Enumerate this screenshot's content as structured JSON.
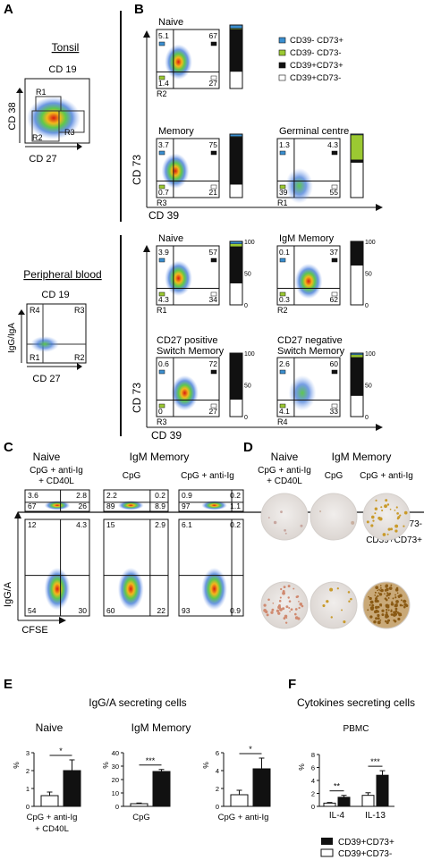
{
  "panels": {
    "A": "A",
    "B": "B",
    "C": "C",
    "D": "D",
    "E": "E",
    "F": "F"
  },
  "A": {
    "tonsil_title": "Tonsil",
    "cd19": "CD 19",
    "ylabel": "CD 38",
    "xlabel": "CD 27",
    "gates": [
      "R1",
      "R2",
      "R3"
    ],
    "pb_title": "Peripheral blood",
    "pb_cd19": "CD 19",
    "pb_ylabel": "IgG/IgA",
    "pb_xlabel": "CD 27",
    "pb_gates": [
      "R4",
      "R3",
      "R1",
      "R2"
    ]
  },
  "B": {
    "legend": [
      "CD39- CD73+",
      "CD39- CD73-",
      "CD39+CD73+",
      "CD39+CD73-"
    ],
    "ylabel": "CD 73",
    "xlabel": "CD 39",
    "top_plots": [
      {
        "title": "Naive",
        "q": [
          "5.1",
          "67",
          "1.4",
          "27"
        ],
        "region": "R2"
      },
      {
        "title": "Memory",
        "q": [
          "3.7",
          "75",
          "0.7",
          "21"
        ],
        "region": "R3"
      },
      {
        "title": "Germinal centre",
        "q": [
          "1.3",
          "4.3",
          "39",
          "55"
        ],
        "region": "R1"
      }
    ],
    "bottom_plots": [
      {
        "title": "Naive",
        "q": [
          "3.9",
          "57",
          "4.3",
          "34"
        ],
        "region": "R1"
      },
      {
        "title": "IgM Memory",
        "q": [
          "0.1",
          "37",
          "0.3",
          "62"
        ],
        "region": "R2"
      },
      {
        "title": "CD27 positive Switch Memory",
        "title_lines": [
          "CD27 positive",
          "Switch Memory"
        ],
        "q": [
          "0.6",
          "72",
          "0",
          "27"
        ],
        "region": "R3"
      },
      {
        "title": "CD27 negative Switch Memory",
        "title_lines": [
          "CD27 negative",
          "Switch Memory"
        ],
        "q": [
          "2.6",
          "60",
          "4.1",
          "33"
        ],
        "region": "R4"
      }
    ],
    "bar_ticks": [
      "100",
      "50",
      "0"
    ]
  },
  "C": {
    "col_titles": [
      "Naive",
      "IgM Memory"
    ],
    "cond_lines": [
      [
        "CpG + anti-Ig",
        "+ CD40L"
      ],
      [
        "CpG"
      ],
      [
        "CpG + anti-Ig"
      ]
    ],
    "top_row": [
      [
        "3.6",
        "2.8",
        "67",
        "26"
      ],
      [
        "2.2",
        "0.2",
        "89",
        "8.9"
      ],
      [
        "0.9",
        "0.2",
        "97",
        "1.1"
      ]
    ],
    "bottom_row": [
      [
        "12",
        "4.3",
        "54",
        "30"
      ],
      [
        "15",
        "2.9",
        "60",
        "22"
      ],
      [
        "6.1",
        "0.2",
        "93",
        "0.9"
      ]
    ],
    "ylabel": "IgG/A",
    "xlabel": "CFSE"
  },
  "D": {
    "col_titles": [
      "Naive",
      "IgM Memory"
    ],
    "cond_lines": [
      [
        "CpG + anti-Ig",
        "+ CD40L"
      ],
      [
        "CpG"
      ],
      [
        "CpG + anti-Ig"
      ]
    ],
    "row_labels": [
      "CD39+CD73-",
      "CD39+CD73+"
    ]
  },
  "E": {
    "title": "IgG/A secreting cells",
    "col_titles": [
      "Naive",
      "IgM Memory"
    ]
  },
  "F": {
    "title": "Cytokines secreting cells",
    "subtitle": "PBMC"
  },
  "legend_bottom": [
    "CD39+CD73+",
    "CD39+CD73-"
  ],
  "colors": {
    "blue": "#3b8fd0",
    "green": "#9bc932",
    "black": "#111111",
    "white": "#ffffff"
  },
  "chart_data": [
    {
      "type": "bar",
      "panel": "B",
      "name": "stacked composition",
      "categories": [
        "Tonsil Naive",
        "Tonsil Memory",
        "Germinal centre",
        "PB Naive",
        "PB IgM Memory",
        "CD27 positive Switch Memory",
        "CD27 negative Switch Memory"
      ],
      "series": [
        {
          "name": "CD39- CD73+",
          "values": [
            5.1,
            3.7,
            1.3,
            3.9,
            0.1,
            0.6,
            2.6
          ]
        },
        {
          "name": "CD39- CD73-",
          "values": [
            1.4,
            0.7,
            39,
            4.3,
            0.3,
            0,
            4.1
          ]
        },
        {
          "name": "CD39+CD73+",
          "values": [
            67,
            75,
            4.3,
            57,
            37,
            72,
            60
          ]
        },
        {
          "name": "CD39+CD73-",
          "values": [
            27,
            21,
            55,
            34,
            62,
            27,
            33
          ]
        }
      ],
      "ylim": [
        0,
        100
      ]
    },
    {
      "type": "bar",
      "panel": "E1",
      "categories": [
        "CpG + anti-Ig + CD40L"
      ],
      "ylabel": "%",
      "ylim": [
        0,
        3
      ],
      "yticks": [
        "0",
        "1",
        "2",
        "3"
      ],
      "series": [
        {
          "name": "CD39+CD73-",
          "values": [
            0.6
          ],
          "err": [
            0.2
          ]
        },
        {
          "name": "CD39+CD73+",
          "values": [
            2.0
          ],
          "err": [
            0.6
          ]
        }
      ],
      "sig": "*"
    },
    {
      "type": "bar",
      "panel": "E2",
      "categories": [
        "CpG"
      ],
      "ylabel": "%",
      "ylim": [
        0,
        40
      ],
      "yticks": [
        "0",
        "10",
        "20",
        "30",
        "40"
      ],
      "series": [
        {
          "name": "CD39+CD73-",
          "values": [
            2
          ],
          "err": [
            0.5
          ]
        },
        {
          "name": "CD39+CD73+",
          "values": [
            26
          ],
          "err": [
            1.5
          ]
        }
      ],
      "sig": "***"
    },
    {
      "type": "bar",
      "panel": "E3",
      "categories": [
        "CpG + anti-Ig"
      ],
      "ylabel": "%",
      "ylim": [
        0,
        6
      ],
      "yticks": [
        "0",
        "2",
        "4",
        "6"
      ],
      "series": [
        {
          "name": "CD39+CD73-",
          "values": [
            1.3
          ],
          "err": [
            0.5
          ]
        },
        {
          "name": "CD39+CD73+",
          "values": [
            4.2
          ],
          "err": [
            1.2
          ]
        }
      ],
      "sig": "*"
    },
    {
      "type": "bar",
      "panel": "F",
      "categories": [
        "IL-4",
        "IL-13"
      ],
      "ylabel": "%",
      "ylim": [
        0,
        8
      ],
      "yticks": [
        "0",
        "2",
        "4",
        "6",
        "8"
      ],
      "series": [
        {
          "name": "CD39+CD73-",
          "values": [
            0.5,
            1.7
          ],
          "err": [
            0.1,
            0.4
          ]
        },
        {
          "name": "CD39+CD73+",
          "values": [
            1.4,
            4.8
          ],
          "err": [
            0.3,
            0.7
          ]
        }
      ],
      "sigs": [
        "**",
        "***"
      ]
    }
  ]
}
